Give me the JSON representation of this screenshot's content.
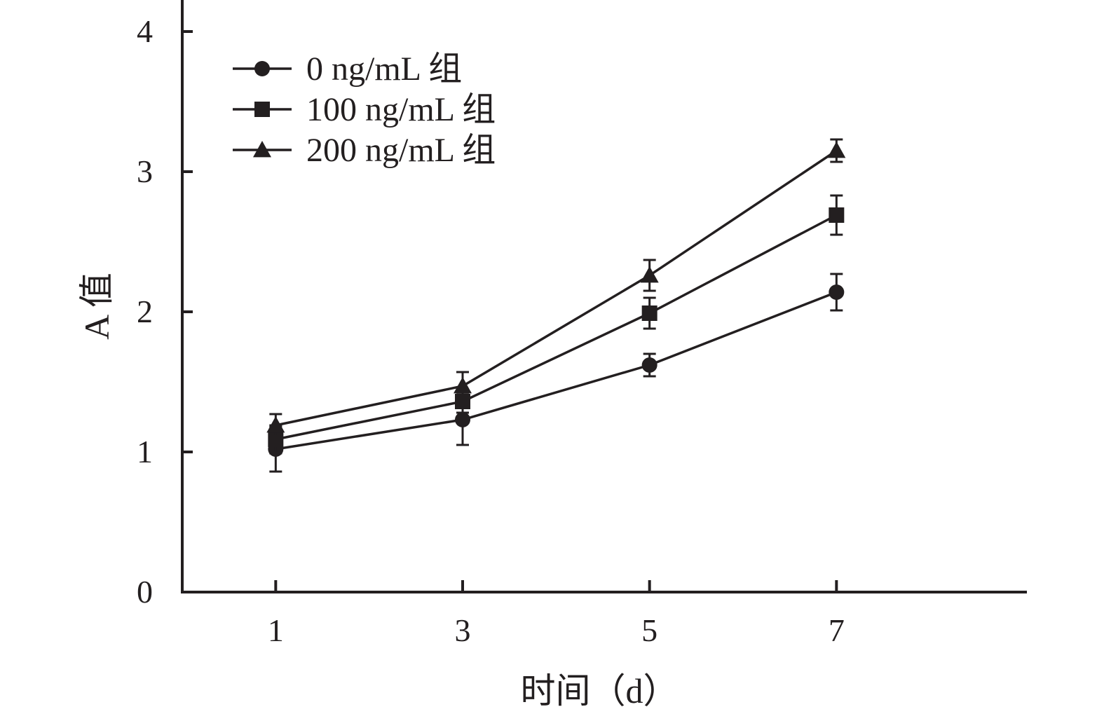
{
  "chart_data": {
    "type": "line",
    "x": [
      1,
      3,
      5,
      7
    ],
    "xlabel": "时间（d）",
    "ylabel": "A 值",
    "xlim": [
      0,
      9
    ],
    "ylim": [
      0,
      4
    ],
    "xticks": [
      "1",
      "3",
      "5",
      "7"
    ],
    "yticks": [
      "0",
      "1",
      "2",
      "3",
      "4"
    ],
    "legend_position": "top-left",
    "grid": false,
    "series": [
      {
        "name": "0 ng/mL 组",
        "marker": "circle",
        "values": [
          1.02,
          1.23,
          1.62,
          2.14
        ],
        "errors": [
          0.16,
          0.18,
          0.08,
          0.13
        ]
      },
      {
        "name": "100 ng/mL 组",
        "marker": "square",
        "values": [
          1.09,
          1.36,
          1.99,
          2.69
        ],
        "errors": [
          0.1,
          0.08,
          0.11,
          0.14
        ]
      },
      {
        "name": "200 ng/mL 组",
        "marker": "triangle",
        "values": [
          1.19,
          1.47,
          2.26,
          3.15
        ],
        "errors": [
          0.08,
          0.1,
          0.11,
          0.08
        ]
      }
    ]
  }
}
